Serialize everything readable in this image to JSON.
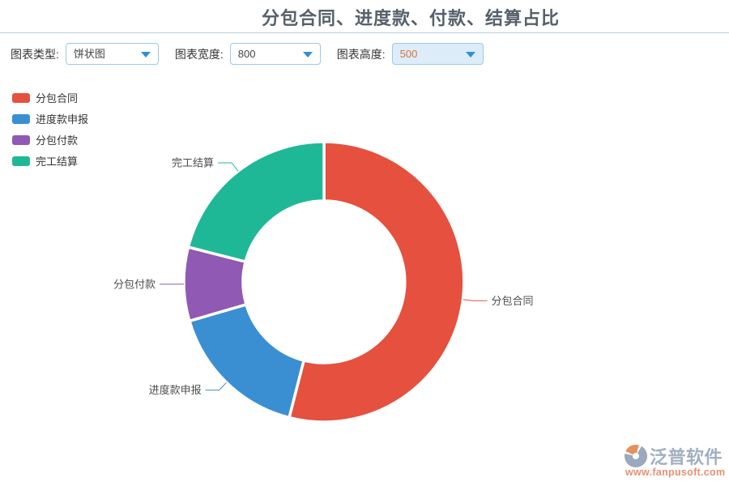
{
  "title": "分包合同、进度款、付款、结算占比",
  "toolbar": {
    "fields": [
      {
        "label": "图表类型:",
        "value": "饼状图",
        "highlighted": false
      },
      {
        "label": "图表宽度:",
        "value": "800",
        "highlighted": false
      },
      {
        "label": "图表高度:",
        "value": "500",
        "highlighted": true
      }
    ]
  },
  "legend": {
    "items": [
      {
        "label": "分包合同",
        "color": "#e6503e"
      },
      {
        "label": "进度款申报",
        "color": "#3a8fd2"
      },
      {
        "label": "分包付款",
        "color": "#9059b4"
      },
      {
        "label": "完工结算",
        "color": "#1fb897"
      }
    ]
  },
  "chart_data": {
    "type": "pie",
    "subtype": "donut",
    "title": "分包合同、进度款、付款、结算占比",
    "categories": [
      "分包合同",
      "进度款申报",
      "分包付款",
      "完工结算"
    ],
    "values_percent_estimated": [
      54,
      16.5,
      8.5,
      21
    ],
    "colors": [
      "#e6503e",
      "#3a8fd2",
      "#9059b4",
      "#1fb897"
    ],
    "start_angle_deg": 90,
    "direction": "clockwise",
    "inner_radius_ratio": 0.58,
    "legend_position": "top-left",
    "slice_labels_shown": true,
    "numeric_labels_shown": false
  },
  "watermark": {
    "brand": "泛普软件",
    "url": "www.fanpusoft.com"
  },
  "icons": {
    "dropdown_arrow": "triangle-down-icon",
    "logo": "fanpu-swirl-icon"
  },
  "colors": {
    "title_text": "#56606a",
    "divider": "#b8cfdf",
    "select_border": "#9cc9ea",
    "select_text": "#444444",
    "highlight_bg": "#dcedf9",
    "highlight_text": "#d9713c",
    "arrow_blue": "#2f8fdb",
    "slice_label_text": "#4d4d4d",
    "legend_text": "#333333",
    "brand_text": "#a2afc2",
    "url_text": "#e89173"
  }
}
